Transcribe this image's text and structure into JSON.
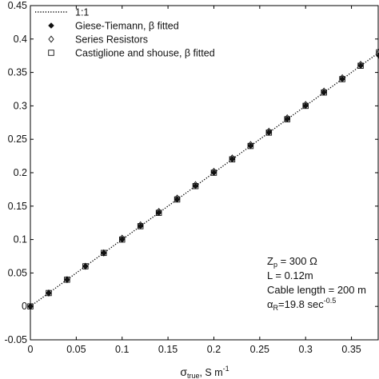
{
  "chart_data": {
    "type": "scatter",
    "title": "",
    "xlabel_main": "σ",
    "xlabel_sub": "true",
    "xlabel_rest": ", S m",
    "xlabel_sup": "-1",
    "ylabel": "",
    "xlim": [
      0,
      0.38
    ],
    "ylim": [
      -0.05,
      0.45
    ],
    "grid": false,
    "legend_position": "top-left",
    "x_ticks": [
      0,
      0.05,
      0.1,
      0.15,
      0.2,
      0.25,
      0.3,
      0.35
    ],
    "x_tick_labels": [
      "0",
      "0.05",
      "0.1",
      "0.15",
      "0.2",
      "0.25",
      "0.3",
      "0.35"
    ],
    "y_ticks": [
      -0.05,
      0,
      0.05,
      0.1,
      0.15,
      0.2,
      0.25,
      0.3,
      0.35,
      0.4,
      0.45
    ],
    "y_tick_labels": [
      "-0.05",
      "0",
      "0.05",
      "0.1",
      "0.15",
      "0.2",
      "0.25",
      "0.3",
      "0.35",
      "0.4",
      "0.45"
    ],
    "x": [
      0,
      0.02,
      0.04,
      0.06,
      0.08,
      0.1,
      0.12,
      0.14,
      0.16,
      0.18,
      0.2,
      0.22,
      0.24,
      0.26,
      0.28,
      0.3,
      0.32,
      0.34,
      0.36,
      0.38
    ],
    "series": [
      {
        "name": "1:1",
        "marker": "dotted-line",
        "x": [
          0,
          0.38
        ],
        "values": [
          0,
          0.38
        ]
      },
      {
        "name": "Giese-Tiemann, β fitted",
        "marker": "filled-diamond",
        "values": [
          0,
          0.02,
          0.04,
          0.06,
          0.08,
          0.1,
          0.12,
          0.14,
          0.16,
          0.18,
          0.2,
          0.22,
          0.24,
          0.26,
          0.28,
          0.3,
          0.32,
          0.34,
          0.36,
          0.375
        ]
      },
      {
        "name": "Series Resistors",
        "marker": "open-diamond",
        "values": [
          0,
          0.02,
          0.04,
          0.06,
          0.08,
          0.102,
          0.122,
          0.142,
          0.162,
          0.182,
          0.202,
          0.222,
          0.242,
          0.262,
          0.282,
          0.302,
          0.322,
          0.342,
          0.362,
          0.38
        ]
      },
      {
        "name": "Castiglione and shouse, β fitted",
        "marker": "open-square",
        "values": [
          0,
          0.02,
          0.04,
          0.06,
          0.08,
          0.1,
          0.12,
          0.14,
          0.16,
          0.18,
          0.2,
          0.22,
          0.24,
          0.26,
          0.28,
          0.3,
          0.32,
          0.34,
          0.36,
          0.38
        ]
      }
    ],
    "annotations": [
      {
        "main": "Z",
        "sub": "p",
        "rest": " = 300 Ω",
        "sup": ""
      },
      {
        "main": "L = 0.12m",
        "sub": "",
        "rest": "",
        "sup": ""
      },
      {
        "main": "Cable length = 200 m",
        "sub": "",
        "rest": "",
        "sup": ""
      },
      {
        "main": "α",
        "sub": "R",
        "rest": "=19.8 sec",
        "sup": "-0.5"
      }
    ]
  },
  "colors": {
    "axis": "#000000",
    "marker": "#111111",
    "line": "#000000"
  }
}
